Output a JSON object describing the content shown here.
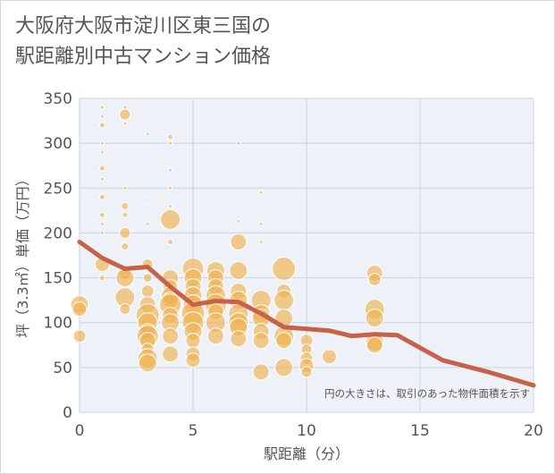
{
  "chart_data": {
    "type": "scatter",
    "title_lines": [
      "大阪府大阪市淀川区東三国の",
      "駅距離別中古マンション価格"
    ],
    "xlabel": "駅距離（分）",
    "ylabel": "坪（3.3㎡）単価（万円）",
    "note": "円の大きさは、取引のあった物件面積を示す",
    "xlim": [
      0,
      20
    ],
    "ylim": [
      0,
      350
    ],
    "xticks": [
      0,
      5,
      10,
      15,
      20
    ],
    "yticks": [
      0,
      50,
      100,
      150,
      200,
      250,
      300,
      350
    ],
    "grid": true,
    "bubble_color": "#f0b050",
    "line_color": "#c8614a",
    "points": [
      [
        0,
        120,
        10
      ],
      [
        0,
        115,
        8
      ],
      [
        0,
        85,
        7
      ],
      [
        1,
        340,
        2
      ],
      [
        1,
        330,
        2
      ],
      [
        1,
        320,
        3
      ],
      [
        1,
        300,
        2
      ],
      [
        1,
        290,
        2
      ],
      [
        1,
        272,
        3
      ],
      [
        1,
        260,
        2
      ],
      [
        1,
        240,
        3
      ],
      [
        1,
        220,
        3
      ],
      [
        1,
        210,
        2
      ],
      [
        1,
        200,
        2
      ],
      [
        1,
        165,
        8
      ],
      [
        1,
        150,
        3
      ],
      [
        2,
        340,
        2
      ],
      [
        2,
        332,
        6
      ],
      [
        2,
        322,
        2
      ],
      [
        2,
        250,
        2
      ],
      [
        2,
        230,
        4
      ],
      [
        2,
        220,
        3
      ],
      [
        2,
        200,
        6
      ],
      [
        2,
        185,
        4
      ],
      [
        2,
        155,
        7
      ],
      [
        2,
        150,
        10
      ],
      [
        2,
        128,
        11
      ],
      [
        2,
        115,
        6
      ],
      [
        3,
        310,
        2
      ],
      [
        3,
        240,
        1
      ],
      [
        3,
        232,
        1
      ],
      [
        3,
        210,
        2
      ],
      [
        3,
        165,
        6
      ],
      [
        3,
        150,
        5
      ],
      [
        3,
        135,
        7
      ],
      [
        3,
        120,
        9
      ],
      [
        3,
        108,
        13
      ],
      [
        3,
        100,
        11
      ],
      [
        3,
        90,
        9
      ],
      [
        3,
        85,
        12
      ],
      [
        3,
        80,
        9
      ],
      [
        3,
        70,
        7
      ],
      [
        3,
        60,
        11
      ],
      [
        3,
        55,
        10
      ],
      [
        4,
        307,
        3
      ],
      [
        4,
        300,
        2
      ],
      [
        4,
        270,
        2
      ],
      [
        4,
        250,
        2
      ],
      [
        4,
        230,
        2
      ],
      [
        4,
        215,
        11
      ],
      [
        4,
        190,
        3
      ],
      [
        4,
        150,
        9
      ],
      [
        4,
        140,
        8
      ],
      [
        4,
        130,
        10
      ],
      [
        4,
        125,
        9
      ],
      [
        4,
        120,
        12
      ],
      [
        4,
        108,
        9
      ],
      [
        4,
        100,
        10
      ],
      [
        4,
        85,
        9
      ],
      [
        4,
        65,
        9
      ],
      [
        5,
        160,
        12
      ],
      [
        5,
        150,
        10
      ],
      [
        5,
        140,
        9
      ],
      [
        5,
        130,
        10
      ],
      [
        5,
        120,
        11
      ],
      [
        5,
        110,
        13
      ],
      [
        5,
        100,
        12
      ],
      [
        5,
        90,
        10
      ],
      [
        5,
        80,
        8
      ],
      [
        5,
        65,
        8
      ],
      [
        5,
        58,
        8
      ],
      [
        6,
        158,
        10
      ],
      [
        6,
        150,
        9
      ],
      [
        6,
        140,
        9
      ],
      [
        6,
        130,
        11
      ],
      [
        6,
        120,
        12
      ],
      [
        6,
        112,
        9
      ],
      [
        6,
        100,
        11
      ],
      [
        6,
        85,
        9
      ],
      [
        7,
        300,
        2
      ],
      [
        7,
        213,
        2
      ],
      [
        7,
        190,
        9
      ],
      [
        7,
        158,
        10
      ],
      [
        7,
        135,
        9
      ],
      [
        7,
        125,
        10
      ],
      [
        7,
        110,
        11
      ],
      [
        7,
        100,
        11
      ],
      [
        7,
        95,
        10
      ],
      [
        7,
        82,
        9
      ],
      [
        8,
        245,
        2
      ],
      [
        8,
        210,
        2
      ],
      [
        8,
        190,
        2
      ],
      [
        8,
        125,
        11
      ],
      [
        8,
        110,
        10
      ],
      [
        8,
        105,
        10
      ],
      [
        8,
        90,
        9
      ],
      [
        8,
        80,
        9
      ],
      [
        8,
        45,
        9
      ],
      [
        9,
        160,
        13
      ],
      [
        9,
        135,
        8
      ],
      [
        9,
        125,
        11
      ],
      [
        9,
        105,
        10
      ],
      [
        9,
        85,
        11
      ],
      [
        9,
        80,
        9
      ],
      [
        9,
        50,
        10
      ],
      [
        10,
        80,
        7
      ],
      [
        10,
        70,
        6
      ],
      [
        10,
        60,
        7
      ],
      [
        10,
        52,
        8
      ],
      [
        10,
        45,
        6
      ],
      [
        11,
        62,
        8
      ],
      [
        13,
        155,
        9
      ],
      [
        13,
        148,
        7
      ],
      [
        13,
        115,
        11
      ],
      [
        13,
        105,
        10
      ],
      [
        13,
        78,
        10
      ],
      [
        13,
        75,
        9
      ]
    ],
    "trend": {
      "x": [
        0,
        1,
        2,
        3,
        4,
        5,
        6,
        7,
        8,
        9,
        10,
        11,
        12,
        13,
        14,
        16,
        18,
        20
      ],
      "y": [
        190,
        172,
        160,
        162,
        140,
        120,
        124,
        123,
        110,
        95,
        93,
        91,
        85,
        87,
        86,
        58,
        45,
        30
      ]
    }
  }
}
